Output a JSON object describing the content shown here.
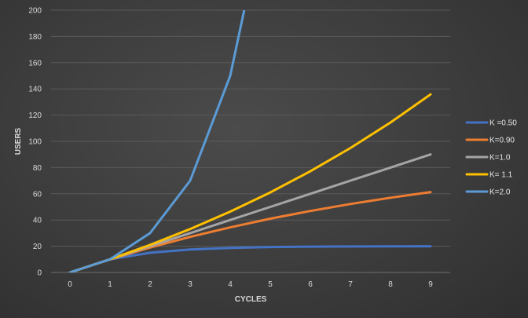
{
  "chart_data": {
    "type": "line",
    "title": "",
    "xlabel": "CYCLES",
    "ylabel": "USERS",
    "x": [
      0,
      1,
      2,
      3,
      4,
      5,
      6,
      7,
      8,
      9
    ],
    "xlim": [
      0,
      9
    ],
    "ylim": [
      0,
      200
    ],
    "y_ticks": [
      0,
      20,
      40,
      60,
      80,
      100,
      120,
      140,
      160,
      180,
      200
    ],
    "grid": true,
    "legend_position": "right",
    "series": [
      {
        "name": "K =0.50",
        "color": "#4472c4",
        "x": [
          0,
          1,
          2,
          3,
          4,
          5,
          6,
          7,
          8,
          9
        ],
        "values": [
          0,
          10,
          15,
          17.5,
          18.75,
          19.4,
          19.7,
          19.85,
          19.9,
          20
        ]
      },
      {
        "name": "K=0.90",
        "color": "#ed7d31",
        "x": [
          0,
          1,
          2,
          3,
          4,
          5,
          6,
          7,
          8,
          9
        ],
        "values": [
          0,
          10,
          19,
          27.1,
          34.4,
          41,
          46.9,
          52.2,
          57,
          61.3
        ]
      },
      {
        "name": "K=1.0",
        "color": "#a5a5a5",
        "x": [
          0,
          1,
          2,
          3,
          4,
          5,
          6,
          7,
          8,
          9
        ],
        "values": [
          0,
          10,
          20,
          30,
          40,
          50,
          60,
          70,
          80,
          90
        ]
      },
      {
        "name": "K= 1.1",
        "color": "#ffc000",
        "x": [
          0,
          1,
          2,
          3,
          4,
          5,
          6,
          7,
          8,
          9
        ],
        "values": [
          0,
          10,
          21,
          33.1,
          46.4,
          61,
          77.2,
          94.9,
          114.4,
          135.8
        ]
      },
      {
        "name": "K=2.0",
        "color": "#5b9bd5",
        "x": [
          0,
          1,
          2,
          3,
          4,
          4.35
        ],
        "values": [
          0,
          10,
          30,
          70,
          150,
          200
        ]
      }
    ]
  }
}
